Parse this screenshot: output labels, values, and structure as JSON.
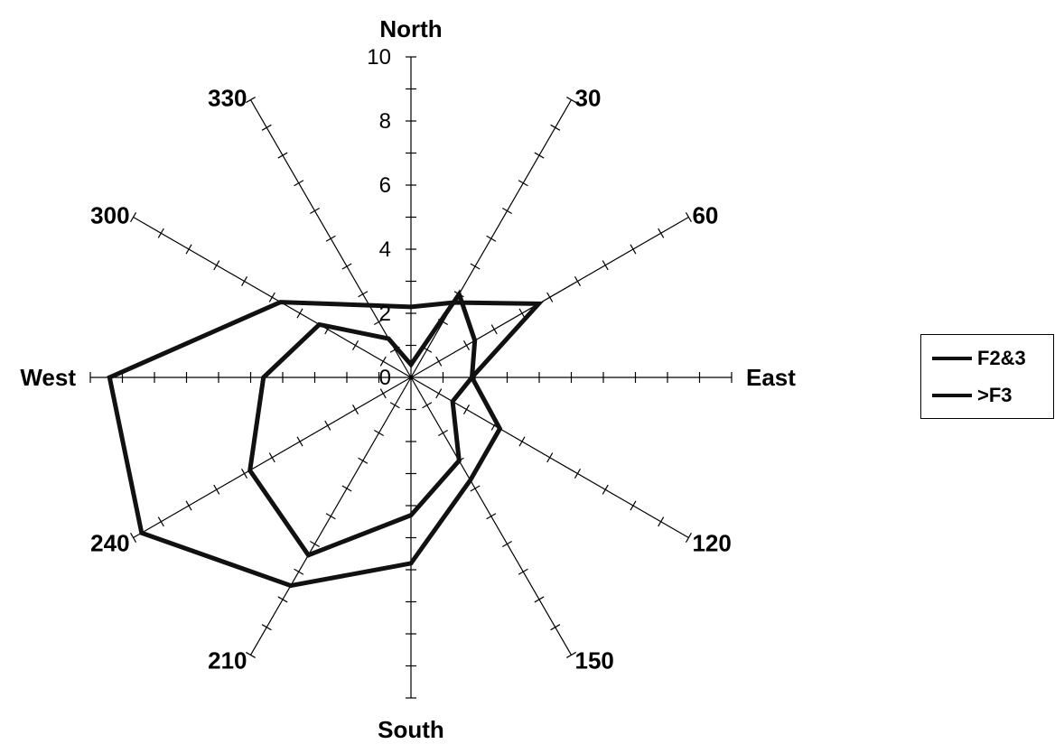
{
  "chart_data": {
    "type": "radar",
    "title": "",
    "directions": [
      "North",
      "30",
      "60",
      "East",
      "120",
      "150",
      "South",
      "210",
      "240",
      "West",
      "300",
      "330"
    ],
    "radial_ticks": [
      "0",
      "2",
      "4",
      "6",
      "8",
      "10"
    ],
    "rmax": 10,
    "series": [
      {
        "name": "F2&3",
        "values": [
          2.2,
          2.7,
          4.6,
          1.9,
          3.2,
          3.7,
          5.8,
          7.5,
          9.7,
          9.4,
          4.7,
          2.6
        ]
      },
      {
        "name": ">F3",
        "values": [
          0.4,
          3.0,
          2.3,
          1.9,
          1.5,
          3.0,
          4.3,
          6.4,
          5.8,
          4.6,
          3.3,
          1.4
        ]
      }
    ],
    "legend_position": "right",
    "line_color": "#111111"
  }
}
